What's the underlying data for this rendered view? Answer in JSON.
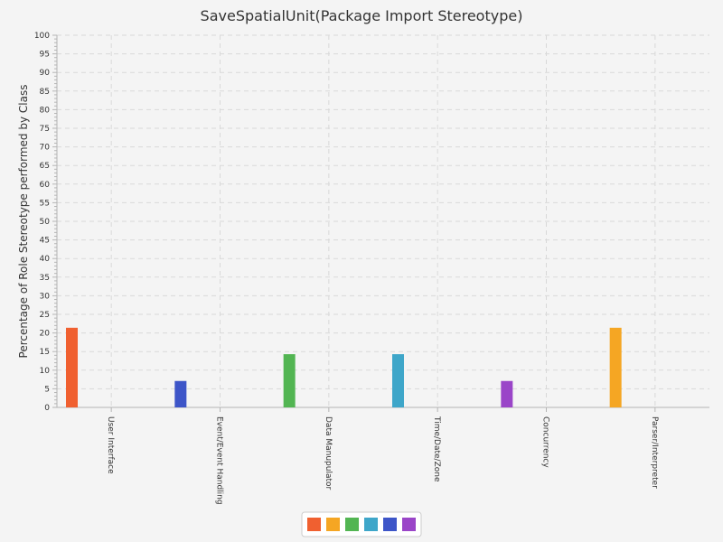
{
  "chart_data": {
    "type": "bar",
    "title": "SaveSpatialUnit(Package Import Stereotype)",
    "xlabel": "",
    "ylabel": "Percentage of Role Stereotype performed by Class",
    "ylim": [
      0,
      100
    ],
    "ytick_step": 5,
    "grid": true,
    "legend_position": "bottom",
    "categories": [
      "User Interface",
      "Event/Event Handling",
      "Data Manupulator",
      "Time/Date/Zone",
      "Concurrency",
      "Parser/Interpreter"
    ],
    "series": [
      {
        "values": [
          21.4,
          null,
          null,
          null,
          null,
          null
        ],
        "color": "#f06030"
      },
      {
        "values": [
          null,
          null,
          null,
          null,
          null,
          21.4
        ],
        "color": "#f5a623"
      },
      {
        "values": [
          null,
          null,
          14.3,
          null,
          null,
          null
        ],
        "color": "#52b552"
      },
      {
        "values": [
          null,
          null,
          null,
          14.3,
          null,
          null
        ],
        "color": "#3ea6c9"
      },
      {
        "values": [
          null,
          7.1,
          null,
          null,
          null,
          null
        ],
        "color": "#3d55c8"
      },
      {
        "values": [
          null,
          null,
          null,
          null,
          7.1,
          null
        ],
        "color": "#9a45c8"
      }
    ]
  }
}
